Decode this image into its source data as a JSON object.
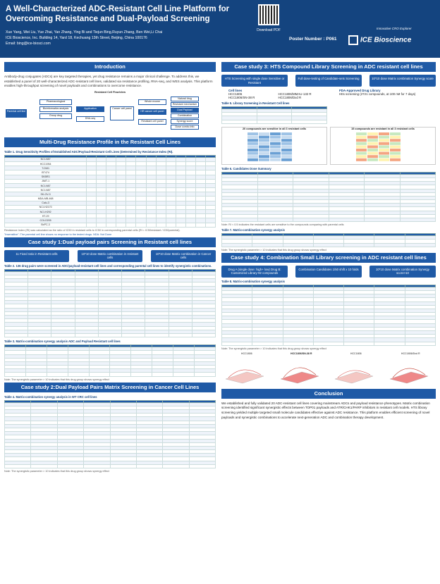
{
  "header": {
    "title": "A Well-Characterized ADC-Resistant Cell Line Platform for Overcoming Resistance and Dual-Payload Screening",
    "authors": "Xue Yang, Wei Liu, Yue Zhai, Yan Zhang, Ying Bi and Tiejun Bing,Ruyun Zhang, Ben Wei,Li Chai",
    "affil": "ICE Bioscience, Inc. Building 14, Yard 18, Kechuang 13th Street, Beijing, China 100176",
    "email": "Email: bing@ice-biosci.com",
    "download": "Download PDF",
    "poster_number": "Poster Number : P061",
    "logo": "ICE Bioscience",
    "tagline": "Innovative CRO Explorer"
  },
  "intro": {
    "band": "Introduction",
    "text": "Antibody-drug conjugates (ADCs) are key targeted therapies, yet drug resistance remains a major clinical challenge. To address this, we established a panel of 20 well-characterized ADC-resistant cell lines, validated via resistance profiling, RNA-seq, and WES analysis. This platform enables high-throughput screening of novel payloads and combinations to overcome resistance.",
    "flow_title": "Resistant Cell Flow/view",
    "flow": [
      "Parental cell line",
      "Pharmacological",
      "Bioinformatics analysis",
      "Group drug",
      "Application",
      "DNA-seq",
      "Cancer cell panel",
      "Whole exome",
      "HR cancer cell panel",
      "Resistant cell panel",
      "Natural drug",
      "Resistant mechanism",
      "Dual Payload",
      "Combination",
      "Synergy score",
      "Dose combo info"
    ]
  },
  "mdr": {
    "band": "Multi-Drug Resistance Profile in the Resistant Cell Lines",
    "cap": "Table 1. Drug Sensitivity Profiles of Established ADC/Payload-Resistant Cell Lines (Determined by Resistance Index (RI).",
    "note1": "Resistance Index (RI) was calculated as the ratio of IC50 in resistant cells to IC50 in corresponding parental cells (RI = IC50resistant / IC50parental).",
    "note2": "\"Insensitive\": The parental cell line shows no response to the tested drugs.   NDA: Not Done",
    "rows": [
      "NCI-N87",
      "HCC1954",
      "T-DM1",
      "BT474",
      "SKBR3",
      "JIMT-1",
      "NCI-N87",
      "NCI-N87",
      "SK-OV-3",
      "MDA-MB-468",
      "Calu-3",
      "NCI-H2170",
      "NCI-H292",
      "HT-29",
      "COLO205",
      "BxPC-3"
    ]
  },
  "cs1": {
    "band": "Case study 1:Dual payload pairs Screening in Resistant cell lines",
    "pills": [
      "11 Fixed ratio in Resistant cells",
      "10*10 dose Matrix combination in resistant cells",
      "10*10 dose Matrix combination in Cancer cells"
    ],
    "cap1": "Table 2. 136 drug pairs were screened in ADC/payload-resistant cell lines and corresponding parental cell lines to identify synergistic combinations.",
    "cap2": "Table 3. Matrix-combination synergy analysis ADC and Payload Resistant cell lines",
    "note": "Note: The synergistic parameter > 10 indicates that this drug group shows synergy effect"
  },
  "cs2": {
    "band": "Case study 2:Dual Payload Pairs Matrix Screening in Cancer Cell Lines",
    "cap": "Table 4. Matrix-combination synergy analysis in WT CRC cell lines",
    "note": "Note: The synergistic parameter > 10 indicates that this drug group shows synergy effect"
  },
  "cs3": {
    "band": "Case study 3: HTS Compound Library Screening in ADC resistant cell lines",
    "pills": [
      "HTS Screening with single dose Sensitive or Resistant",
      "Full dose-testing of Candidate-sets Screening",
      "10*10 dose Matrix combination Synergy score"
    ],
    "cell_lines_title": "Cell lines",
    "cell_lines": [
      "HCC1806",
      "HCC1806/SN-38 R",
      "HCC1806/MMAU-132 R",
      "HCC1806/Dxd R"
    ],
    "library_title": "FDA-Approved Drug Library",
    "library": "HIts screening (2721 compounds, at 100 nM for 7 days)",
    "cap5": "Table 5. Library Screening in Resistant Cell lines",
    "chart1": "20 compounds are sensitive in all 3 resistant cells",
    "chart2": "15 compounds are resistant in all 3 resistant cells",
    "cap6": "Table 6. Candidates Dose Summary",
    "note6": "Note: RI < 0.5 indicates the resistant cells are sensitive to the compounds comparing with parental cells",
    "cap7": "Table 7. Matrix-combination synergy analysis",
    "note7": "Note: The synergistic parameter > 10 indicates that this drug group shows synergy effect"
  },
  "cs4": {
    "band": "Case study 4: Combination Small Library screening in ADC resistant cell lines",
    "pills": [
      "Drug A (single dose: high+ low) Drug B: Customized Library-92 compounds",
      "Combination Candidates 1/50 shift x 10 folds",
      "10*10 dose Matrix combination Synergy score>10"
    ],
    "cap": "Table 8. Matrix-combination synergy analysis",
    "note": "Note: The synergistic parameter > 10 indicates that this drug group shows synergy effect",
    "surfaces": [
      "HCC1806",
      "HCC1806/SN-38 R",
      "HCC1806",
      "HCC1806/Dxd R"
    ]
  },
  "conclusion": {
    "band": "Conclusion",
    "text": "We established and fully validated 20 ADC-resistant cell lines covering mainstream ADCs and payload resistance phenotypes. Matrix combination screening identified significant synergistic effects between TOP01 payloads and ATR/CHK1/PARP inhibitors in resistant cell models. HTS library screening yielded multiple targeted small molecule candidates effective against ADC resistance. This platform enables efficient screening of novel payloads and synergistic combinations to accelerate next-generation ADC and combination therapy development."
  }
}
